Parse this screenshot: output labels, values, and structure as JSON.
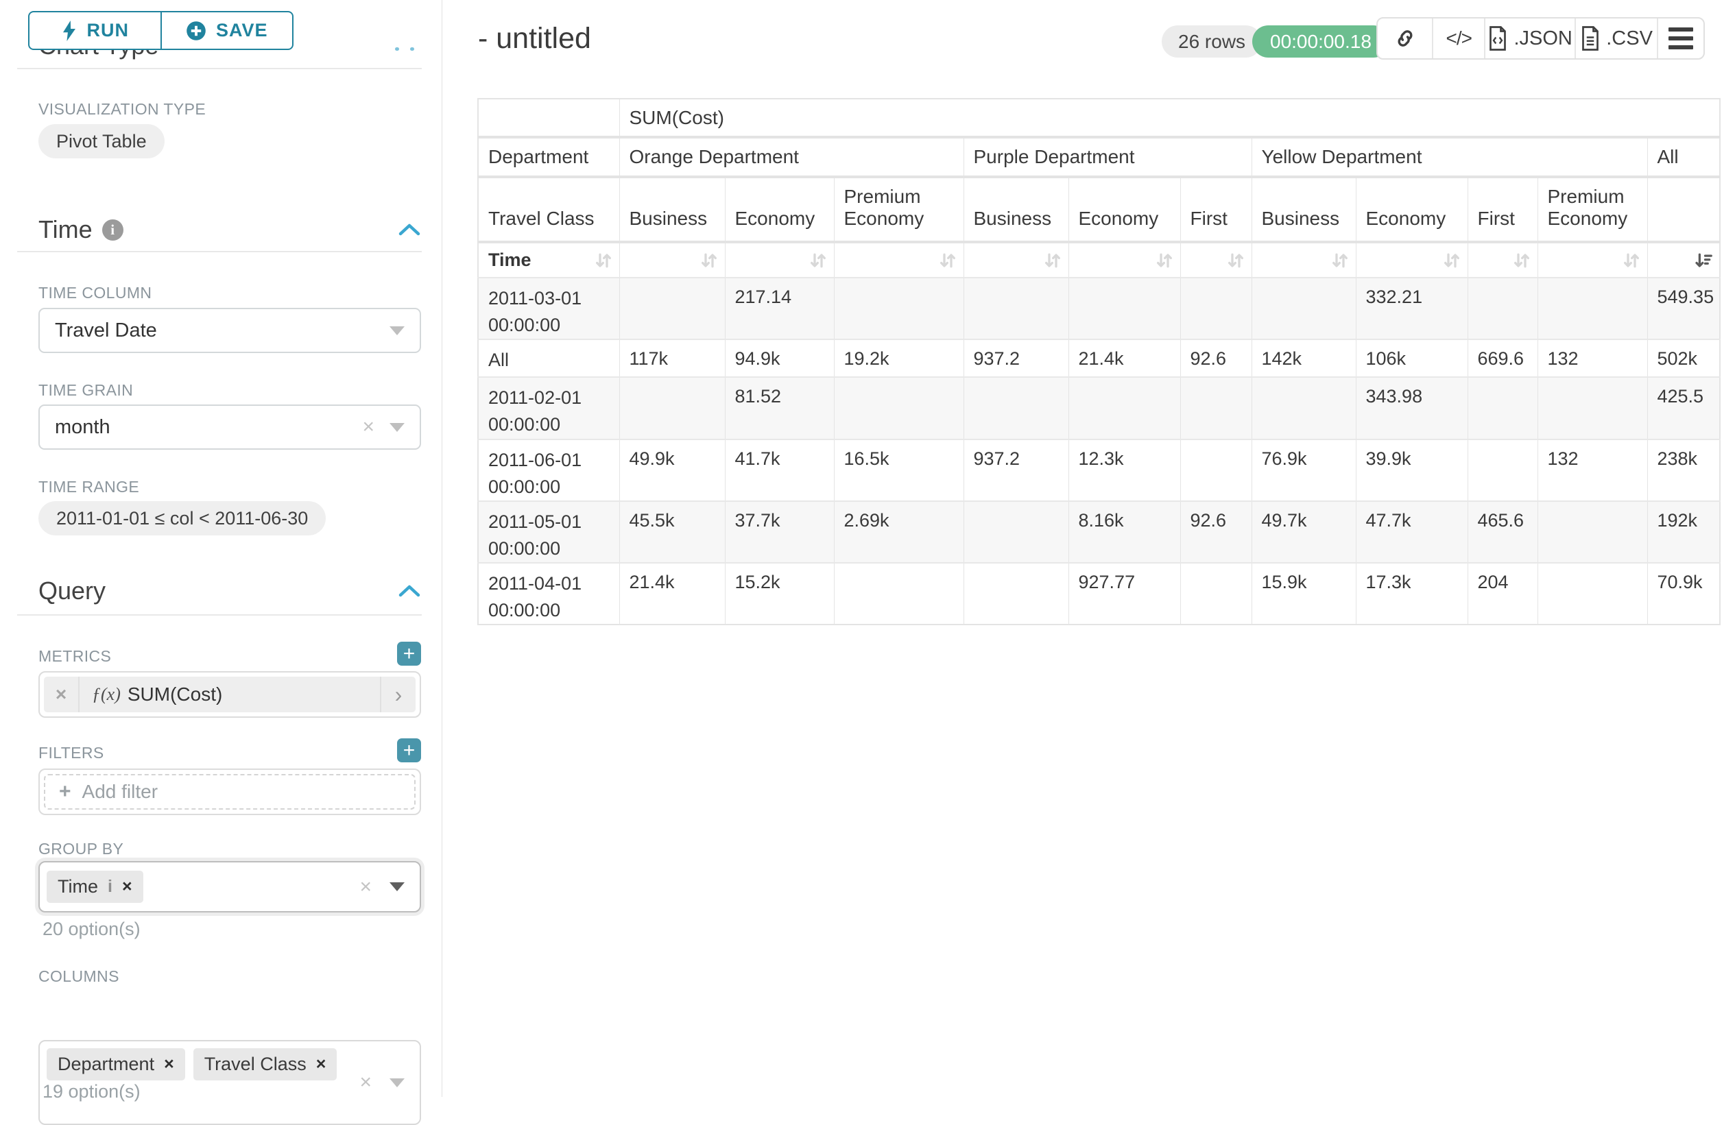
{
  "sidebar": {
    "run_label": "RUN",
    "save_label": "SAVE",
    "section_title": "Chart Type",
    "visualization": {
      "label": "VISUALIZATION TYPE",
      "value": "Pivot Table"
    },
    "time": {
      "title": "Time",
      "time_column_label": "TIME COLUMN",
      "time_column_value": "Travel Date",
      "time_grain_label": "TIME GRAIN",
      "time_grain_value": "month",
      "time_range_label": "TIME RANGE",
      "time_range_value": "2011-01-01 ≤ col < 2011-06-30"
    },
    "query": {
      "title": "Query",
      "metrics_label": "METRICS",
      "metric_chip": "SUM(Cost)",
      "filters_label": "FILTERS",
      "add_filter_label": "Add filter",
      "group_by_label": "GROUP BY",
      "group_by_chips": [
        "Time"
      ],
      "group_by_hint": "20 option(s)",
      "columns_label": "COLUMNS",
      "columns_chips": [
        "Department",
        "Travel Class"
      ],
      "columns_hint": "19 option(s)"
    }
  },
  "header": {
    "title": "- untitled",
    "rows_badge": "26 rows",
    "timer_badge": "00:00:00.18",
    "json_label": ".JSON",
    "csv_label": ".CSV"
  },
  "colors": {
    "accent": "#20839e",
    "plus_teal": "#4a96ab",
    "success_green": "#6cbe8f"
  },
  "pivot": {
    "metric_header": "SUM(Cost)",
    "corner_row2": "Department",
    "corner_row3": "Travel Class",
    "corner_row4": "Time",
    "col_groups": [
      {
        "label": "Orange Department",
        "classes": [
          "Business",
          "Economy",
          "Premium Economy"
        ]
      },
      {
        "label": "Purple Department",
        "classes": [
          "Business",
          "Economy",
          "First"
        ]
      },
      {
        "label": "Yellow Department",
        "classes": [
          "Business",
          "Economy",
          "First",
          "Premium Economy"
        ]
      },
      {
        "label": "All",
        "classes": [
          ""
        ]
      }
    ],
    "sort": {
      "active_column_index": 10,
      "direction": "desc"
    },
    "rows": [
      {
        "label": "2011-03-01 00:00:00",
        "values": [
          "",
          "217.14",
          "",
          "",
          "",
          "",
          "",
          "332.21",
          "",
          "",
          "549.35"
        ]
      },
      {
        "label": "All",
        "values": [
          "117k",
          "94.9k",
          "19.2k",
          "937.2",
          "21.4k",
          "92.6",
          "142k",
          "106k",
          "669.6",
          "132",
          "502k"
        ]
      },
      {
        "label": "2011-02-01 00:00:00",
        "values": [
          "",
          "81.52",
          "",
          "",
          "",
          "",
          "",
          "343.98",
          "",
          "",
          "425.5"
        ]
      },
      {
        "label": "2011-06-01 00:00:00",
        "values": [
          "49.9k",
          "41.7k",
          "16.5k",
          "937.2",
          "12.3k",
          "",
          "76.9k",
          "39.9k",
          "",
          "132",
          "238k"
        ]
      },
      {
        "label": "2011-05-01 00:00:00",
        "values": [
          "45.5k",
          "37.7k",
          "2.69k",
          "",
          "8.16k",
          "92.6",
          "49.7k",
          "47.7k",
          "465.6",
          "",
          "192k"
        ]
      },
      {
        "label": "2011-04-01 00:00:00",
        "values": [
          "21.4k",
          "15.2k",
          "",
          "",
          "927.77",
          "",
          "15.9k",
          "17.3k",
          "204",
          "",
          "70.9k"
        ]
      }
    ]
  }
}
